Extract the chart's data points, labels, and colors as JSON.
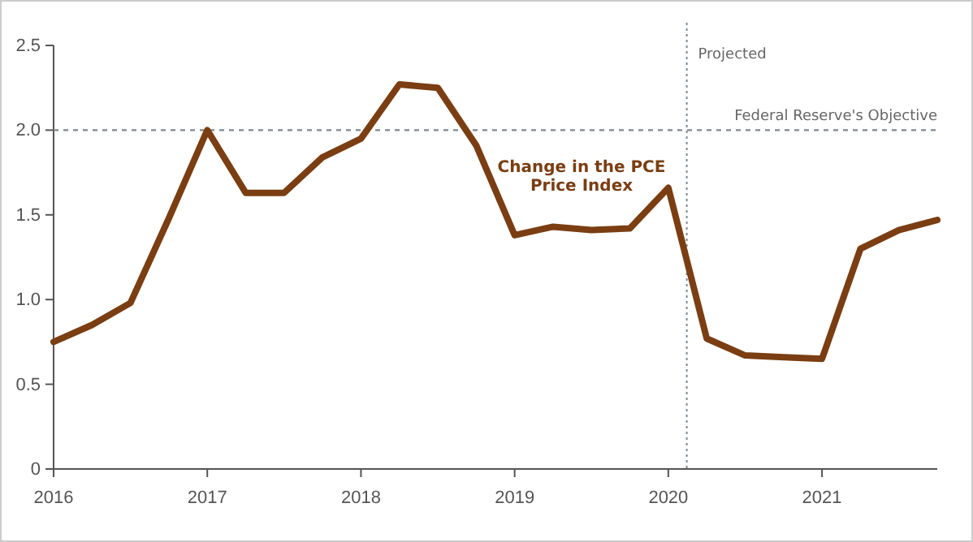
{
  "chart_data": {
    "type": "line",
    "x": [
      2016,
      2016.25,
      2016.5,
      2016.75,
      2017,
      2017.25,
      2017.5,
      2017.75,
      2018,
      2018.25,
      2018.5,
      2018.75,
      2019,
      2019.25,
      2019.5,
      2019.75,
      2020,
      2020.25,
      2020.5,
      2020.75,
      2021,
      2021.25,
      2021.5,
      2021.75
    ],
    "series": [
      {
        "color": "#7a3e12",
        "values": [
          0.75,
          0.85,
          0.98,
          1.48,
          2.0,
          1.63,
          1.63,
          1.84,
          1.95,
          2.27,
          2.25,
          1.91,
          1.38,
          1.43,
          1.41,
          1.42,
          1.66,
          0.77,
          0.67,
          0.66,
          0.65,
          1.3,
          1.41,
          1.47
        ]
      }
    ],
    "xlim": [
      2016,
      2021.75
    ],
    "xticks": [
      2016,
      2017,
      2018,
      2019,
      2020,
      2021
    ],
    "ylim": [
      0,
      2.5
    ],
    "yticks": [
      0,
      0.5,
      {
        "value": 1,
        "label": "1.0"
      },
      1.5,
      {
        "value": 2,
        "label": "2.0"
      },
      2.5
    ],
    "grid": false,
    "marker": "none",
    "line_style": "solid",
    "ref_lines": [
      {
        "axis": "y",
        "value": 2,
        "label": "Federal Reserve's Objective",
        "line_style": "dashed",
        "color": "#7f8790"
      },
      {
        "axis": "x",
        "value": 2020.12,
        "label": "Projected",
        "line_style": "dotted",
        "color": "#7f8790"
      }
    ],
    "annotations": [
      "Change in the PCE\nPrice Index"
    ]
  }
}
